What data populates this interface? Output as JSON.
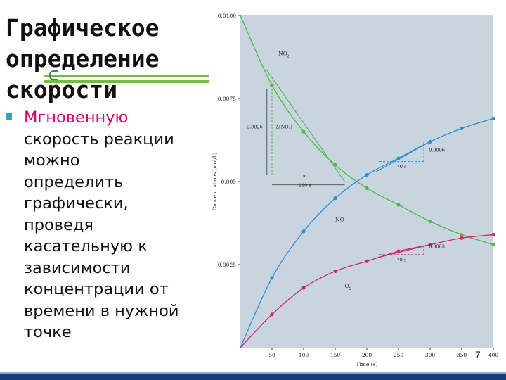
{
  "slide": {
    "title_lines": [
      "Графическое",
      "определение",
      "скорости"
    ],
    "body_lines": [
      "Мгновенную",
      "скорость реакции",
      "можно",
      "определить",
      "графически,",
      "проведя",
      "касательную к",
      "зависимости",
      "концентрации от",
      "времени в нужной",
      "точке"
    ],
    "page_number": "7",
    "colors": {
      "accent_text": "#d6006b",
      "bullet": "#2aa8c0",
      "deco_line": "#6fbf3a",
      "bottom_bar": "#1a3a7a"
    }
  },
  "chart_data": {
    "type": "line",
    "xlabel": "Time (s)",
    "ylabel": "Concentrations (mol/L)",
    "x_ticks": [
      "50",
      "100",
      "150",
      "200",
      "250",
      "300",
      "350",
      "400"
    ],
    "y_ticks": [
      "0.0025",
      "0.005",
      "0.0075",
      "0.0100"
    ],
    "xlim": [
      0,
      400
    ],
    "ylim": [
      0,
      0.01
    ],
    "grid": false,
    "background": "#c9d5de",
    "x": [
      0,
      50,
      100,
      150,
      200,
      250,
      300,
      350,
      400
    ],
    "series": [
      {
        "name": "NO2",
        "color": "#4cb84c",
        "values": [
          0.01,
          0.0079,
          0.0065,
          0.0055,
          0.0048,
          0.0043,
          0.0038,
          0.0034,
          0.0031
        ]
      },
      {
        "name": "NO",
        "color": "#2b8fd6",
        "values": [
          0.0,
          0.0021,
          0.0035,
          0.0045,
          0.0052,
          0.0057,
          0.0062,
          0.0066,
          0.0069
        ]
      },
      {
        "name": "O2",
        "color": "#d4246e",
        "values": [
          0.0,
          0.001,
          0.0018,
          0.0023,
          0.0026,
          0.0029,
          0.0031,
          0.0033,
          0.0034
        ]
      }
    ],
    "annotations": {
      "dno2_value": "0.0026",
      "dno2_label": "Δ[NO₂]",
      "dt_label": "Δt",
      "dt_value": "110 s",
      "no_rise_value": "0.0006",
      "no_run_value": "70 s",
      "o2_rise_value": "0.0003",
      "o2_run_value": "70 s"
    }
  }
}
